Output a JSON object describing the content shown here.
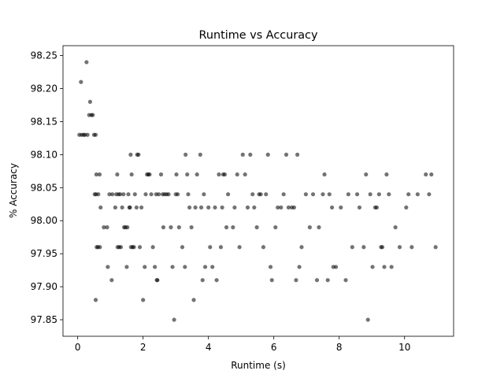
{
  "chart_data": {
    "type": "scatter",
    "title": "Runtime vs Accuracy",
    "xlabel": "Runtime (s)",
    "ylabel": "% Accuracy",
    "xlim": [
      -0.45,
      11.5
    ],
    "ylim": [
      97.825,
      98.265
    ],
    "xticks": [
      0,
      2,
      4,
      6,
      8,
      10
    ],
    "yticks": [
      97.85,
      97.9,
      97.95,
      98.0,
      98.05,
      98.1,
      98.15,
      98.2,
      98.25
    ],
    "xtick_labels": [
      "0",
      "2",
      "4",
      "6",
      "8",
      "10"
    ],
    "ytick_labels": [
      "97.85",
      "97.90",
      "97.95",
      "98.00",
      "98.05",
      "98.10",
      "98.15",
      "98.20",
      "98.25"
    ],
    "grid": false,
    "legend": "none",
    "marker_color": "#000000",
    "marker_opacity": 0.55,
    "points": [
      [
        0.1,
        98.21
      ],
      [
        0.27,
        98.24
      ],
      [
        0.05,
        98.13
      ],
      [
        0.12,
        98.13
      ],
      [
        0.18,
        98.13
      ],
      [
        0.22,
        98.13
      ],
      [
        0.3,
        98.13
      ],
      [
        0.35,
        98.16
      ],
      [
        0.38,
        98.18
      ],
      [
        0.42,
        98.16
      ],
      [
        0.46,
        98.16
      ],
      [
        0.5,
        98.13
      ],
      [
        0.55,
        98.13
      ],
      [
        0.52,
        98.04
      ],
      [
        0.56,
        98.04
      ],
      [
        0.57,
        98.07
      ],
      [
        0.63,
        98.04
      ],
      [
        0.67,
        98.07
      ],
      [
        0.58,
        97.96
      ],
      [
        0.62,
        97.96
      ],
      [
        0.68,
        97.96
      ],
      [
        0.7,
        98.02
      ],
      [
        0.8,
        97.99
      ],
      [
        0.9,
        97.99
      ],
      [
        0.55,
        97.88
      ],
      [
        0.92,
        97.93
      ],
      [
        0.97,
        98.04
      ],
      [
        1.06,
        98.04
      ],
      [
        1.04,
        97.91
      ],
      [
        1.15,
        98.02
      ],
      [
        1.18,
        98.04
      ],
      [
        1.21,
        98.07
      ],
      [
        1.25,
        98.04
      ],
      [
        1.3,
        98.04
      ],
      [
        1.22,
        97.96
      ],
      [
        1.27,
        97.96
      ],
      [
        1.32,
        97.96
      ],
      [
        1.36,
        98.02
      ],
      [
        1.4,
        98.04
      ],
      [
        1.42,
        97.99
      ],
      [
        1.46,
        97.99
      ],
      [
        1.5,
        97.93
      ],
      [
        1.52,
        97.99
      ],
      [
        1.55,
        98.04
      ],
      [
        1.6,
        98.02
      ],
      [
        1.63,
        97.96
      ],
      [
        1.58,
        98.02
      ],
      [
        1.62,
        98.1
      ],
      [
        1.65,
        98.07
      ],
      [
        1.68,
        97.96
      ],
      [
        1.72,
        97.96
      ],
      [
        1.75,
        98.04
      ],
      [
        1.8,
        98.02
      ],
      [
        1.82,
        98.1
      ],
      [
        1.86,
        98.1
      ],
      [
        1.9,
        97.96
      ],
      [
        1.95,
        98.02
      ],
      [
        2.0,
        97.88
      ],
      [
        2.05,
        97.93
      ],
      [
        2.08,
        98.04
      ],
      [
        2.12,
        98.07
      ],
      [
        2.16,
        98.07
      ],
      [
        2.2,
        98.07
      ],
      [
        2.25,
        98.04
      ],
      [
        2.3,
        97.96
      ],
      [
        2.36,
        97.93
      ],
      [
        2.4,
        98.04
      ],
      [
        2.42,
        97.91
      ],
      [
        2.44,
        97.91
      ],
      [
        2.48,
        98.04
      ],
      [
        2.55,
        98.07
      ],
      [
        2.6,
        98.04
      ],
      [
        2.62,
        97.99
      ],
      [
        2.66,
        98.04
      ],
      [
        2.72,
        98.04
      ],
      [
        2.78,
        98.04
      ],
      [
        2.85,
        97.99
      ],
      [
        2.9,
        97.93
      ],
      [
        2.95,
        97.85
      ],
      [
        3.0,
        98.04
      ],
      [
        3.02,
        98.07
      ],
      [
        3.06,
        98.04
      ],
      [
        3.1,
        97.99
      ],
      [
        3.2,
        97.96
      ],
      [
        3.28,
        97.93
      ],
      [
        3.3,
        98.1
      ],
      [
        3.35,
        98.07
      ],
      [
        3.38,
        98.04
      ],
      [
        3.42,
        98.02
      ],
      [
        3.48,
        97.99
      ],
      [
        3.55,
        97.88
      ],
      [
        3.6,
        98.02
      ],
      [
        3.65,
        98.07
      ],
      [
        3.75,
        98.1
      ],
      [
        3.78,
        98.02
      ],
      [
        3.82,
        97.91
      ],
      [
        3.86,
        98.04
      ],
      [
        3.9,
        97.93
      ],
      [
        4.0,
        98.02
      ],
      [
        4.05,
        97.96
      ],
      [
        4.12,
        97.93
      ],
      [
        4.2,
        98.02
      ],
      [
        4.25,
        97.91
      ],
      [
        4.32,
        98.07
      ],
      [
        4.38,
        97.96
      ],
      [
        4.42,
        98.02
      ],
      [
        4.45,
        98.07
      ],
      [
        4.5,
        98.07
      ],
      [
        4.55,
        97.99
      ],
      [
        4.6,
        98.04
      ],
      [
        4.75,
        97.99
      ],
      [
        4.8,
        98.02
      ],
      [
        4.88,
        98.07
      ],
      [
        4.95,
        97.96
      ],
      [
        5.05,
        98.1
      ],
      [
        5.12,
        98.07
      ],
      [
        5.2,
        98.02
      ],
      [
        5.28,
        98.1
      ],
      [
        5.35,
        98.04
      ],
      [
        5.4,
        98.02
      ],
      [
        5.48,
        97.99
      ],
      [
        5.55,
        98.04
      ],
      [
        5.6,
        98.04
      ],
      [
        5.68,
        97.96
      ],
      [
        5.76,
        98.04
      ],
      [
        5.82,
        98.1
      ],
      [
        5.9,
        97.93
      ],
      [
        5.94,
        97.91
      ],
      [
        6.05,
        97.99
      ],
      [
        6.12,
        98.02
      ],
      [
        6.22,
        98.02
      ],
      [
        6.3,
        98.04
      ],
      [
        6.38,
        98.1
      ],
      [
        6.45,
        98.02
      ],
      [
        6.55,
        98.02
      ],
      [
        6.62,
        98.02
      ],
      [
        6.68,
        97.91
      ],
      [
        6.72,
        98.1
      ],
      [
        6.78,
        97.93
      ],
      [
        6.85,
        97.96
      ],
      [
        6.98,
        98.04
      ],
      [
        7.1,
        97.99
      ],
      [
        7.2,
        98.04
      ],
      [
        7.32,
        97.91
      ],
      [
        7.38,
        97.99
      ],
      [
        7.5,
        98.04
      ],
      [
        7.55,
        98.07
      ],
      [
        7.65,
        97.91
      ],
      [
        7.7,
        98.04
      ],
      [
        7.78,
        98.02
      ],
      [
        7.82,
        97.93
      ],
      [
        7.9,
        97.93
      ],
      [
        8.05,
        98.02
      ],
      [
        8.2,
        97.91
      ],
      [
        8.28,
        98.04
      ],
      [
        8.4,
        97.96
      ],
      [
        8.55,
        98.04
      ],
      [
        8.62,
        98.02
      ],
      [
        8.75,
        97.96
      ],
      [
        8.82,
        98.07
      ],
      [
        8.88,
        97.85
      ],
      [
        8.95,
        98.04
      ],
      [
        9.02,
        97.93
      ],
      [
        9.1,
        98.02
      ],
      [
        9.15,
        98.02
      ],
      [
        9.22,
        98.04
      ],
      [
        9.28,
        97.96
      ],
      [
        9.32,
        97.96
      ],
      [
        9.38,
        97.93
      ],
      [
        9.45,
        98.07
      ],
      [
        9.52,
        98.04
      ],
      [
        9.6,
        97.93
      ],
      [
        9.72,
        97.99
      ],
      [
        9.85,
        97.96
      ],
      [
        10.05,
        98.02
      ],
      [
        10.12,
        98.04
      ],
      [
        10.22,
        97.96
      ],
      [
        10.4,
        98.04
      ],
      [
        10.65,
        98.07
      ],
      [
        10.75,
        98.04
      ],
      [
        10.82,
        98.07
      ],
      [
        10.95,
        97.96
      ]
    ]
  }
}
